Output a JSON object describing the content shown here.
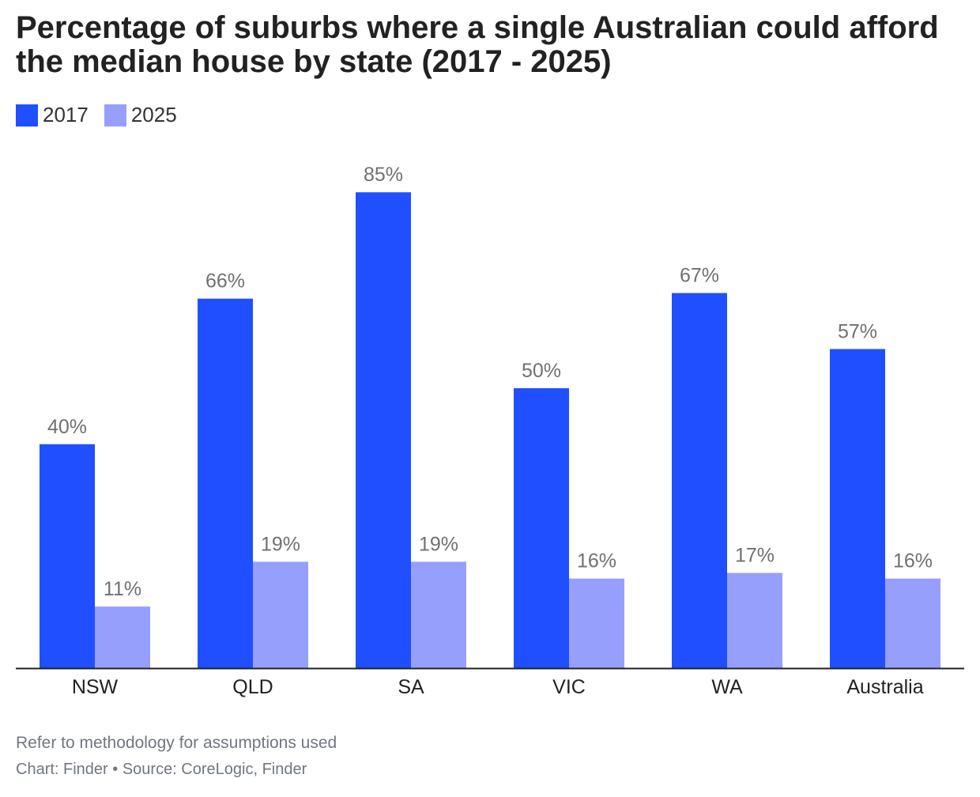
{
  "title": "Percentage of suburbs where a single Australian could afford the median house by state (2017 - 2025)",
  "colors": {
    "2017": "#1f4fff",
    "2025": "#979ffd",
    "axis": "#222222",
    "label": "#707070"
  },
  "chart_data": {
    "type": "bar",
    "categories": [
      "NSW",
      "QLD",
      "SA",
      "VIC",
      "WA",
      "Australia"
    ],
    "series": [
      {
        "name": "2017",
        "values": [
          40,
          66,
          85,
          50,
          67,
          57
        ],
        "labels": [
          "40%",
          "66%",
          "85%",
          "50%",
          "67%",
          "57%"
        ]
      },
      {
        "name": "2025",
        "values": [
          11,
          19,
          19,
          16,
          17,
          16
        ],
        "labels": [
          "11%",
          "19%",
          "19%",
          "16%",
          "17%",
          "16%"
        ]
      }
    ],
    "ylim": [
      0,
      100
    ],
    "unit": "%",
    "grid": false,
    "legend": "top-left"
  },
  "footer": {
    "note": "Refer to methodology for assumptions used",
    "source": "Chart: Finder • Source: CoreLogic, Finder"
  }
}
